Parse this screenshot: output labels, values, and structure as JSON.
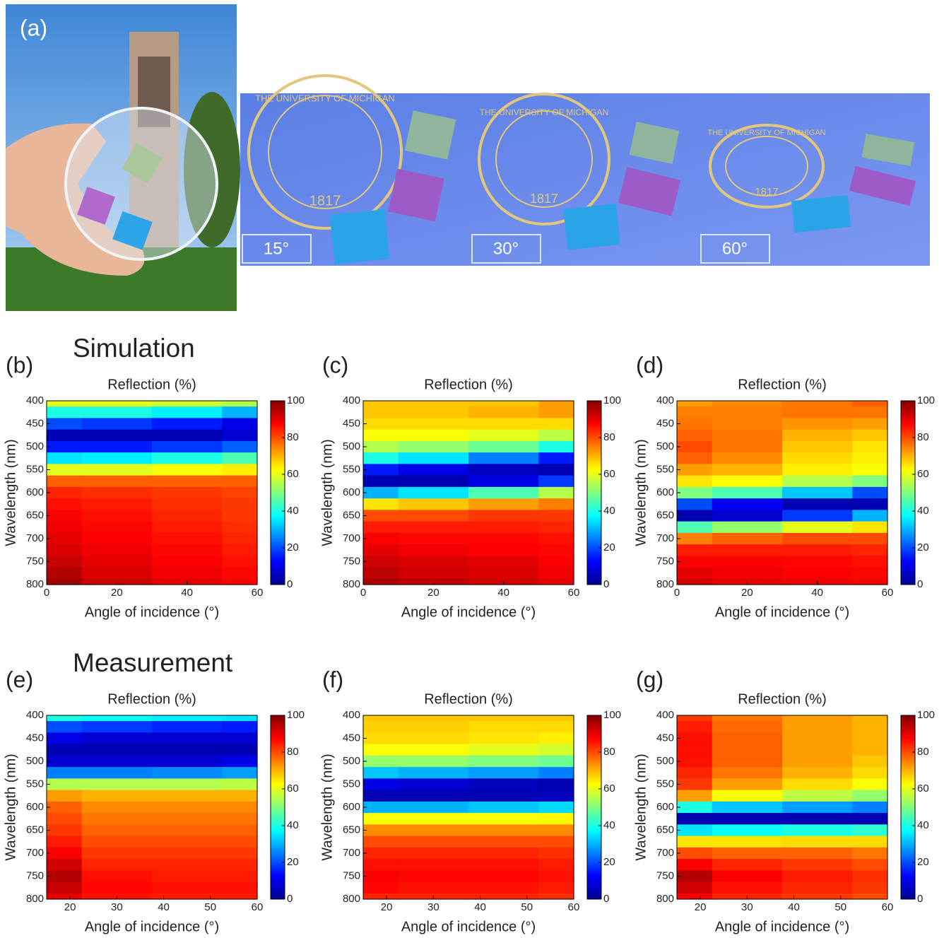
{
  "photo": {
    "label": "(a)",
    "angles": [
      "15°",
      "30°",
      "60°"
    ],
    "seal_text": "THE UNIVERSITY OF MICHIGAN",
    "seal_year": "1817"
  },
  "chart_data": [
    {
      "type": "heatmap",
      "label": "(b)",
      "heading": "Simulation",
      "title": "Reflection (%)",
      "xlabel": "Angle of incidence (°)",
      "ylabel": "Wavelength (nm)",
      "x": [
        0,
        20,
        40,
        60
      ],
      "y": [
        400,
        425,
        450,
        475,
        500,
        525,
        550,
        575,
        600,
        625,
        650,
        675,
        700,
        725,
        750,
        775,
        800
      ],
      "y_reversed": true,
      "xlim": [
        0,
        60
      ],
      "xticks": [
        0,
        20,
        40,
        60
      ],
      "ylim": [
        400,
        800
      ],
      "yticks": [
        400,
        450,
        500,
        550,
        600,
        650,
        700,
        750,
        800
      ],
      "colormap": "jet",
      "clim": [
        0,
        100
      ],
      "cticks": [
        0,
        20,
        40,
        60,
        80,
        100
      ],
      "z": [
        [
          60,
          60,
          58,
          55
        ],
        [
          40,
          40,
          36,
          30
        ],
        [
          20,
          18,
          15,
          10
        ],
        [
          5,
          5,
          5,
          8
        ],
        [
          15,
          15,
          18,
          22
        ],
        [
          35,
          36,
          40,
          45
        ],
        [
          60,
          60,
          62,
          64
        ],
        [
          78,
          78,
          78,
          78
        ],
        [
          84,
          83,
          82,
          81
        ],
        [
          86,
          85,
          83,
          82
        ],
        [
          88,
          86,
          84,
          82
        ],
        [
          89,
          87,
          85,
          83
        ],
        [
          90,
          88,
          86,
          84
        ],
        [
          91,
          89,
          87,
          85
        ],
        [
          93,
          90,
          88,
          86
        ],
        [
          95,
          91,
          89,
          87
        ],
        [
          97,
          93,
          90,
          88
        ]
      ]
    },
    {
      "type": "heatmap",
      "label": "(c)",
      "title": "Reflection (%)",
      "xlabel": "Angle of incidence (°)",
      "ylabel": "Wavelength (nm)",
      "x": [
        0,
        20,
        40,
        60
      ],
      "y": [
        400,
        425,
        450,
        475,
        500,
        525,
        550,
        575,
        600,
        625,
        650,
        675,
        700,
        725,
        750,
        775,
        800
      ],
      "y_reversed": true,
      "xlim": [
        0,
        60
      ],
      "xticks": [
        0,
        20,
        40,
        60
      ],
      "ylim": [
        400,
        800
      ],
      "yticks": [
        400,
        450,
        500,
        550,
        600,
        650,
        700,
        750,
        800
      ],
      "colormap": "jet",
      "clim": [
        0,
        100
      ],
      "cticks": [
        0,
        20,
        40,
        60,
        80,
        100
      ],
      "z": [
        [
          68,
          68,
          68,
          72
        ],
        [
          68,
          68,
          70,
          72
        ],
        [
          66,
          66,
          66,
          66
        ],
        [
          62,
          62,
          60,
          56
        ],
        [
          55,
          52,
          48,
          40
        ],
        [
          40,
          35,
          25,
          15
        ],
        [
          15,
          10,
          6,
          5
        ],
        [
          5,
          5,
          10,
          18
        ],
        [
          30,
          35,
          45,
          55
        ],
        [
          65,
          68,
          72,
          75
        ],
        [
          80,
          80,
          82,
          82
        ],
        [
          85,
          85,
          85,
          84
        ],
        [
          88,
          87,
          87,
          86
        ],
        [
          90,
          89,
          88,
          87
        ],
        [
          92,
          91,
          90,
          88
        ],
        [
          94,
          92,
          91,
          89
        ],
        [
          96,
          94,
          92,
          90
        ]
      ]
    },
    {
      "type": "heatmap",
      "label": "(d)",
      "title": "Reflection (%)",
      "xlabel": "Angle of incidence (°)",
      "ylabel": "Wavelength (nm)",
      "x": [
        0,
        20,
        40,
        60
      ],
      "y": [
        400,
        425,
        450,
        475,
        500,
        525,
        550,
        575,
        600,
        625,
        650,
        675,
        700,
        725,
        750,
        775,
        800
      ],
      "y_reversed": true,
      "xlim": [
        0,
        60
      ],
      "xticks": [
        0,
        20,
        40,
        60
      ],
      "ylim": [
        400,
        800
      ],
      "yticks": [
        400,
        450,
        500,
        550,
        600,
        650,
        700,
        750,
        800
      ],
      "colormap": "jet",
      "clim": [
        0,
        100
      ],
      "cticks": [
        0,
        20,
        40,
        60,
        80,
        100
      ],
      "z": [
        [
          72,
          74,
          76,
          78
        ],
        [
          75,
          75,
          76,
          76
        ],
        [
          76,
          75,
          73,
          72
        ],
        [
          78,
          76,
          70,
          68
        ],
        [
          80,
          76,
          68,
          65
        ],
        [
          78,
          74,
          66,
          64
        ],
        [
          72,
          70,
          64,
          62
        ],
        [
          65,
          62,
          55,
          50
        ],
        [
          50,
          45,
          32,
          20
        ],
        [
          20,
          12,
          5,
          5
        ],
        [
          5,
          8,
          18,
          30
        ],
        [
          45,
          52,
          60,
          65
        ],
        [
          75,
          78,
          80,
          80
        ],
        [
          85,
          85,
          85,
          84
        ],
        [
          88,
          88,
          87,
          86
        ],
        [
          90,
          89,
          88,
          87
        ],
        [
          92,
          90,
          89,
          88
        ]
      ]
    },
    {
      "type": "heatmap",
      "label": "(e)",
      "heading": "Measurement",
      "title": "Reflection (%)",
      "xlabel": "Angle of incidence (°)",
      "ylabel": "Wavelength (nm)",
      "x": [
        15,
        30,
        45,
        60
      ],
      "y": [
        400,
        425,
        450,
        475,
        500,
        525,
        550,
        575,
        600,
        625,
        650,
        675,
        700,
        725,
        750,
        775,
        800
      ],
      "y_reversed": true,
      "xlim": [
        15,
        60
      ],
      "xticks": [
        20,
        30,
        40,
        50,
        60
      ],
      "ylim": [
        400,
        800
      ],
      "yticks": [
        400,
        450,
        500,
        550,
        600,
        650,
        700,
        750,
        800
      ],
      "colormap": "jet",
      "clim": [
        0,
        100
      ],
      "cticks": [
        0,
        20,
        40,
        60,
        80,
        100
      ],
      "z": [
        [
          40,
          38,
          36,
          35
        ],
        [
          20,
          18,
          16,
          15
        ],
        [
          10,
          8,
          8,
          8
        ],
        [
          5,
          5,
          5,
          5
        ],
        [
          8,
          8,
          8,
          10
        ],
        [
          25,
          25,
          26,
          28
        ],
        [
          55,
          55,
          55,
          56
        ],
        [
          72,
          70,
          70,
          70
        ],
        [
          78,
          74,
          74,
          74
        ],
        [
          80,
          76,
          76,
          76
        ],
        [
          82,
          78,
          78,
          78
        ],
        [
          85,
          80,
          80,
          80
        ],
        [
          88,
          82,
          82,
          82
        ],
        [
          92,
          84,
          84,
          84
        ],
        [
          95,
          86,
          85,
          85
        ],
        [
          93,
          87,
          86,
          86
        ],
        [
          90,
          86,
          85,
          85
        ]
      ]
    },
    {
      "type": "heatmap",
      "label": "(f)",
      "title": "Reflection (%)",
      "xlabel": "Angle of incidence (°)",
      "ylabel": "Wavelength (nm)",
      "x": [
        15,
        30,
        45,
        60
      ],
      "y": [
        400,
        425,
        450,
        475,
        500,
        525,
        550,
        575,
        600,
        625,
        650,
        675,
        700,
        725,
        750,
        775,
        800
      ],
      "y_reversed": true,
      "xlim": [
        15,
        60
      ],
      "xticks": [
        20,
        30,
        40,
        50,
        60
      ],
      "ylim": [
        400,
        800
      ],
      "yticks": [
        400,
        450,
        500,
        550,
        600,
        650,
        700,
        750,
        800
      ],
      "colormap": "jet",
      "clim": [
        0,
        100
      ],
      "cticks": [
        0,
        20,
        40,
        60,
        80,
        100
      ],
      "z": [
        [
          68,
          68,
          68,
          68
        ],
        [
          67,
          67,
          66,
          66
        ],
        [
          66,
          66,
          65,
          64
        ],
        [
          62,
          62,
          60,
          58
        ],
        [
          52,
          52,
          50,
          48
        ],
        [
          32,
          30,
          28,
          25
        ],
        [
          10,
          8,
          6,
          5
        ],
        [
          5,
          5,
          5,
          6
        ],
        [
          30,
          30,
          32,
          34
        ],
        [
          62,
          62,
          62,
          63
        ],
        [
          74,
          74,
          74,
          74
        ],
        [
          80,
          80,
          80,
          80
        ],
        [
          84,
          84,
          84,
          83
        ],
        [
          86,
          86,
          86,
          85
        ],
        [
          88,
          87,
          87,
          86
        ],
        [
          87,
          86,
          86,
          85
        ],
        [
          84,
          84,
          84,
          83
        ]
      ]
    },
    {
      "type": "heatmap",
      "label": "(g)",
      "title": "Reflection (%)",
      "xlabel": "Angle of incidence (°)",
      "ylabel": "Wavelength (nm)",
      "x": [
        15,
        30,
        45,
        60
      ],
      "y": [
        400,
        425,
        450,
        475,
        500,
        525,
        550,
        575,
        600,
        625,
        650,
        675,
        700,
        725,
        750,
        775,
        800
      ],
      "y_reversed": true,
      "xlim": [
        15,
        60
      ],
      "xticks": [
        20,
        30,
        40,
        50,
        60
      ],
      "ylim": [
        400,
        800
      ],
      "yticks": [
        400,
        450,
        500,
        550,
        600,
        650,
        700,
        750,
        800
      ],
      "colormap": "jet",
      "clim": [
        0,
        100
      ],
      "cticks": [
        0,
        20,
        40,
        60,
        80,
        100
      ],
      "z": [
        [
          82,
          76,
          72,
          70
        ],
        [
          85,
          77,
          72,
          70
        ],
        [
          86,
          78,
          72,
          70
        ],
        [
          86,
          78,
          72,
          70
        ],
        [
          86,
          78,
          72,
          68
        ],
        [
          84,
          76,
          70,
          66
        ],
        [
          82,
          72,
          66,
          62
        ],
        [
          72,
          62,
          56,
          52
        ],
        [
          40,
          32,
          28,
          25
        ],
        [
          5,
          5,
          5,
          5
        ],
        [
          35,
          38,
          40,
          42
        ],
        [
          65,
          65,
          66,
          66
        ],
        [
          80,
          78,
          78,
          76
        ],
        [
          88,
          84,
          82,
          80
        ],
        [
          95,
          88,
          85,
          83
        ],
        [
          92,
          86,
          84,
          82
        ],
        [
          88,
          84,
          82,
          80
        ]
      ]
    }
  ]
}
